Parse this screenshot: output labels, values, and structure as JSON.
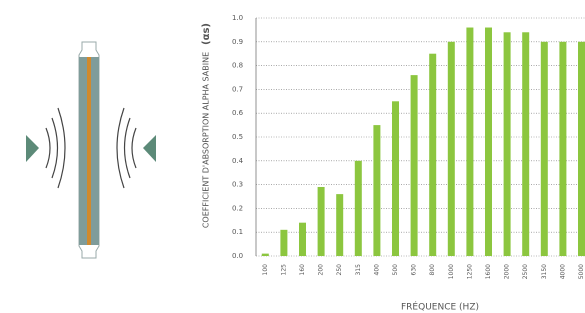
{
  "chart_data": {
    "type": "bar",
    "y_label": "COEFFICIENT D'ABSORPTION ALPHA SABINE",
    "y_symbol": "(αs)",
    "x_label": "FRÉQUENCE (HZ)",
    "categories": [
      "100",
      "125",
      "160",
      "200",
      "250",
      "315",
      "400",
      "500",
      "630",
      "800",
      "1000",
      "1250",
      "1600",
      "2000",
      "2500",
      "3150",
      "4000",
      "5000"
    ],
    "values": [
      0.01,
      0.11,
      0.14,
      0.29,
      0.26,
      0.4,
      0.55,
      0.65,
      0.76,
      0.85,
      0.9,
      0.96,
      0.96,
      0.94,
      0.94,
      0.9,
      0.9,
      0.9
    ],
    "color": "#8cc63f",
    "ylim": [
      0,
      1
    ],
    "yticks": [
      {
        "value": 0,
        "label": "0.0"
      },
      0.1,
      0.2,
      0.3,
      0.4,
      0.5,
      0.6,
      0.7,
      0.8,
      0.9,
      {
        "value": 1,
        "label": "1.0"
      }
    ],
    "grid": true
  }
}
